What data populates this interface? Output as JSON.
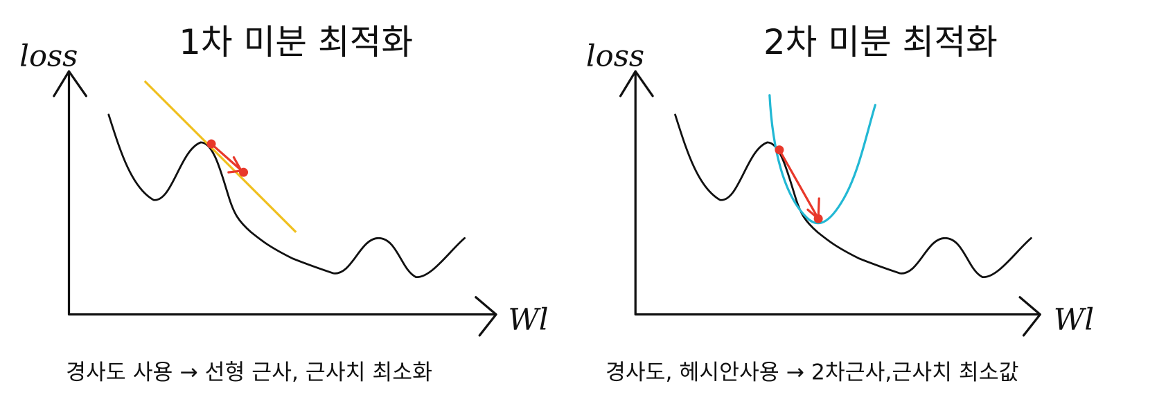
{
  "panels": [
    {
      "title": "1차 미분 최적화",
      "y_label": "loss",
      "x_label": "Wl",
      "caption": "경사도 사용 → 선형 근사, 근사치 최소화"
    },
    {
      "title": "2차 미분 최적화",
      "y_label": "loss",
      "x_label": "Wl",
      "caption": "경사도, 헤시안사용 → 2차근사,근사치 최소값"
    }
  ]
}
